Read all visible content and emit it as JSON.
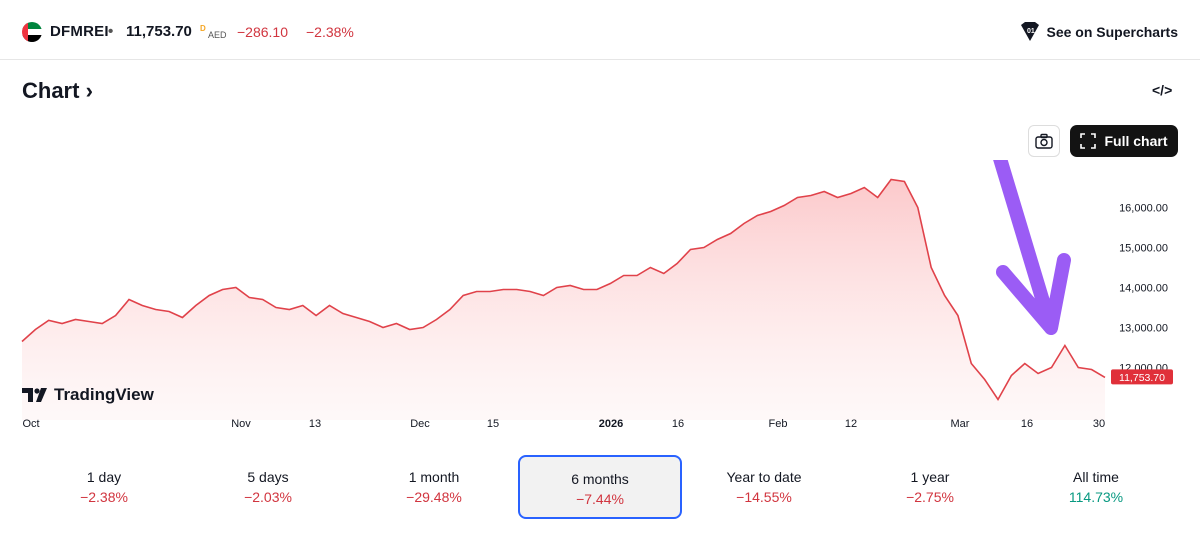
{
  "header": {
    "symbol": "DFMREI",
    "separator": "•",
    "price": "11,753.70",
    "price_flag": "D",
    "currency": "AED",
    "change": "−286.10",
    "change_pct": "−2.38%",
    "supercharts_label": "See on Supercharts"
  },
  "chart_section": {
    "title": "Chart",
    "full_chart_label": "Full chart",
    "brand": "TradingView"
  },
  "colors": {
    "line": "#e0424a",
    "fill": "#fcd8d9",
    "negative": "#d1353f",
    "positive": "#089981",
    "active_border": "#2962ff",
    "annotation": "#9b5cf5"
  },
  "chart_data": {
    "type": "area",
    "y_ticks": [
      "16,000.00",
      "15,000.00",
      "14,000.00",
      "13,000.00",
      "12,000.00"
    ],
    "y_tick_values": [
      16000,
      15000,
      14000,
      13000,
      12000
    ],
    "x_ticks": [
      "Oct",
      "Nov",
      "13",
      "Dec",
      "15",
      "2026",
      "16",
      "Feb",
      "12",
      "Mar",
      "16",
      "30"
    ],
    "last_price_label": "11,753.70",
    "last_price": 11753.7,
    "points": [
      12650,
      12950,
      13180,
      13100,
      13200,
      13150,
      13100,
      13300,
      13700,
      13550,
      13450,
      13400,
      13250,
      13550,
      13800,
      13950,
      14000,
      13750,
      13700,
      13500,
      13450,
      13550,
      13300,
      13550,
      13350,
      13250,
      13150,
      13000,
      13100,
      12950,
      13000,
      13200,
      13450,
      13800,
      13900,
      13900,
      13950,
      13950,
      13900,
      13800,
      14000,
      14050,
      13950,
      13950,
      14100,
      14300,
      14300,
      14500,
      14350,
      14600,
      14950,
      15000,
      15200,
      15350,
      15600,
      15800,
      15900,
      16050,
      16250,
      16300,
      16400,
      16250,
      16350,
      16500,
      16250,
      16700,
      16650,
      16000,
      14500,
      13800,
      13300,
      12100,
      11700,
      11200,
      11800,
      12100,
      11850,
      12000,
      12550,
      12000,
      11950,
      11753.7
    ]
  },
  "ranges": [
    {
      "label": "1 day",
      "value": "−2.38%",
      "sign": "neg"
    },
    {
      "label": "5 days",
      "value": "−2.03%",
      "sign": "neg"
    },
    {
      "label": "1 month",
      "value": "−29.48%",
      "sign": "neg"
    },
    {
      "label": "6 months",
      "value": "−7.44%",
      "sign": "neg",
      "active": true
    },
    {
      "label": "Year to date",
      "value": "−14.55%",
      "sign": "neg"
    },
    {
      "label": "1 year",
      "value": "−2.75%",
      "sign": "neg"
    },
    {
      "label": "All time",
      "value": "114.73%",
      "sign": "pos"
    }
  ]
}
